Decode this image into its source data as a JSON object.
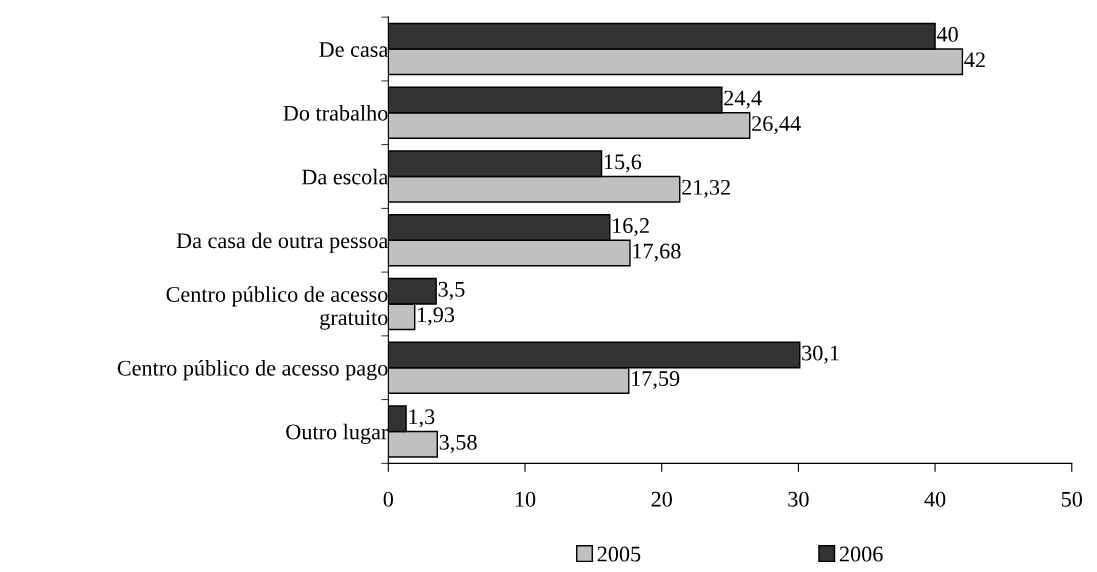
{
  "chart_data": {
    "type": "bar",
    "orientation": "horizontal",
    "categories": [
      "De casa",
      "Do trabalho",
      "Da escola",
      "Da casa de outra pessoa",
      "Centro público de acesso\ngratuito",
      "Centro público de acesso pago",
      "Outro lugar"
    ],
    "series": [
      {
        "name": "2005",
        "color": "#c0c0c0",
        "values": [
          42,
          26.44,
          21.32,
          17.68,
          1.93,
          17.59,
          3.58
        ],
        "value_labels": [
          "42",
          "26,44",
          "21,32",
          "17,68",
          "1,93",
          "17,59",
          "3,58"
        ]
      },
      {
        "name": "2006",
        "color": "#333333",
        "values": [
          40,
          24.4,
          15.6,
          16.2,
          3.5,
          30.1,
          1.3
        ],
        "value_labels": [
          "40",
          "24,4",
          "15,6",
          "16,2",
          "3,5",
          "30,1",
          "1,3"
        ]
      }
    ],
    "xlim": [
      0,
      50
    ],
    "xticks": [
      0,
      10,
      20,
      30,
      40,
      50
    ],
    "grid": false,
    "legend": "bottom"
  }
}
